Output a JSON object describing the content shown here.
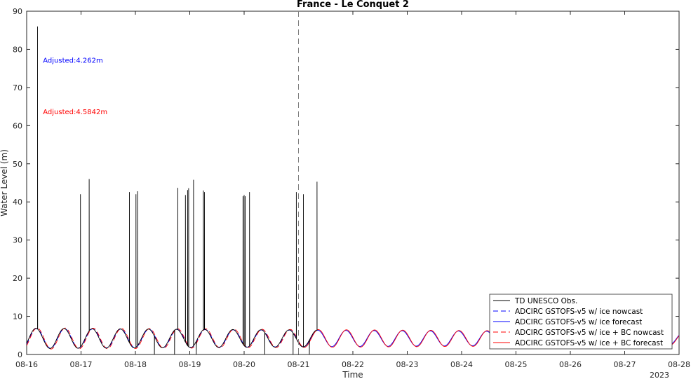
{
  "chart_data": {
    "type": "line",
    "title": "France - Le Conquet 2",
    "xlabel": "Time",
    "ylabel": "Water Level (m)",
    "year_label": "2023",
    "xlim": [
      0,
      12
    ],
    "ylim": [
      0,
      90
    ],
    "x_ticks": [
      {
        "v": 0,
        "label": "08-16"
      },
      {
        "v": 1,
        "label": "08-17"
      },
      {
        "v": 2,
        "label": "08-18"
      },
      {
        "v": 3,
        "label": "08-19"
      },
      {
        "v": 4,
        "label": "08-20"
      },
      {
        "v": 5,
        "label": "08-21"
      },
      {
        "v": 6,
        "label": "08-22"
      },
      {
        "v": 7,
        "label": "08-23"
      },
      {
        "v": 8,
        "label": "08-24"
      },
      {
        "v": 9,
        "label": "08-25"
      },
      {
        "v": 10,
        "label": "08-26"
      },
      {
        "v": 11,
        "label": "08-27"
      },
      {
        "v": 12,
        "label": "08-28"
      }
    ],
    "y_ticks": [
      0,
      10,
      20,
      30,
      40,
      50,
      60,
      70,
      80,
      90
    ],
    "forecast_start_x": 5.0,
    "annotations": [
      {
        "text": "Adjusted:4.262m",
        "color": "#0000ff",
        "x": 0.3,
        "y": 76.5
      },
      {
        "text": "Adjusted:4.5842m",
        "color": "#ff0000",
        "x": 0.3,
        "y": 63
      }
    ],
    "legend_position": "bottom-right",
    "series": [
      {
        "name": "TD UNESCO Obs.",
        "color": "#000000",
        "dash": "solid",
        "x_range": [
          0,
          5.35
        ]
      },
      {
        "name": "ADCIRC GSTOFS-v5 w/ ice nowcast",
        "color": "#0000ff",
        "dash": "dashed",
        "x_range": [
          0,
          5.0
        ]
      },
      {
        "name": "ADCIRC GSTOFS-v5 w/ ice forecast",
        "color": "#0000ff",
        "dash": "solid",
        "x_range": [
          5.0,
          12
        ]
      },
      {
        "name": "ADCIRC GSTOFS-v5 w/ ice + BC nowcast",
        "color": "#ff0000",
        "dash": "dashed",
        "x_range": [
          0,
          5.0
        ]
      },
      {
        "name": "ADCIRC GSTOFS-v5 w/ ice + BC forecast",
        "color": "#ff0000",
        "dash": "solid",
        "x_range": [
          5.0,
          12
        ]
      }
    ],
    "tide_model": {
      "description": "semidiurnal tide",
      "mean": 4.2,
      "amplitude_start": 2.6,
      "amplitude_end": 1.6,
      "period_days": 0.5175,
      "first_peak_x": 0.18
    },
    "obs_spikes": [
      {
        "x": 0.2,
        "y": 86
      },
      {
        "x": 0.99,
        "y": 42
      },
      {
        "x": 1.15,
        "y": 46
      },
      {
        "x": 1.89,
        "y": 42.6
      },
      {
        "x": 2.01,
        "y": 42
      },
      {
        "x": 2.04,
        "y": 42.8
      },
      {
        "x": 2.35,
        "y": 0
      },
      {
        "x": 2.72,
        "y": 0
      },
      {
        "x": 2.78,
        "y": 43.7
      },
      {
        "x": 2.92,
        "y": 41.8
      },
      {
        "x": 2.96,
        "y": 43.1
      },
      {
        "x": 2.98,
        "y": 43.6
      },
      {
        "x": 3.07,
        "y": 45.8
      },
      {
        "x": 3.25,
        "y": 43
      },
      {
        "x": 3.27,
        "y": 42.6
      },
      {
        "x": 3.12,
        "y": 0
      },
      {
        "x": 3.98,
        "y": 41.5
      },
      {
        "x": 4.0,
        "y": 41.8
      },
      {
        "x": 4.02,
        "y": 41.5
      },
      {
        "x": 4.1,
        "y": 42.6
      },
      {
        "x": 4.38,
        "y": 0
      },
      {
        "x": 4.9,
        "y": 0
      },
      {
        "x": 4.96,
        "y": 42.6
      },
      {
        "x": 5.09,
        "y": 42
      },
      {
        "x": 5.2,
        "y": 0
      },
      {
        "x": 5.34,
        "y": 45.3
      }
    ]
  }
}
